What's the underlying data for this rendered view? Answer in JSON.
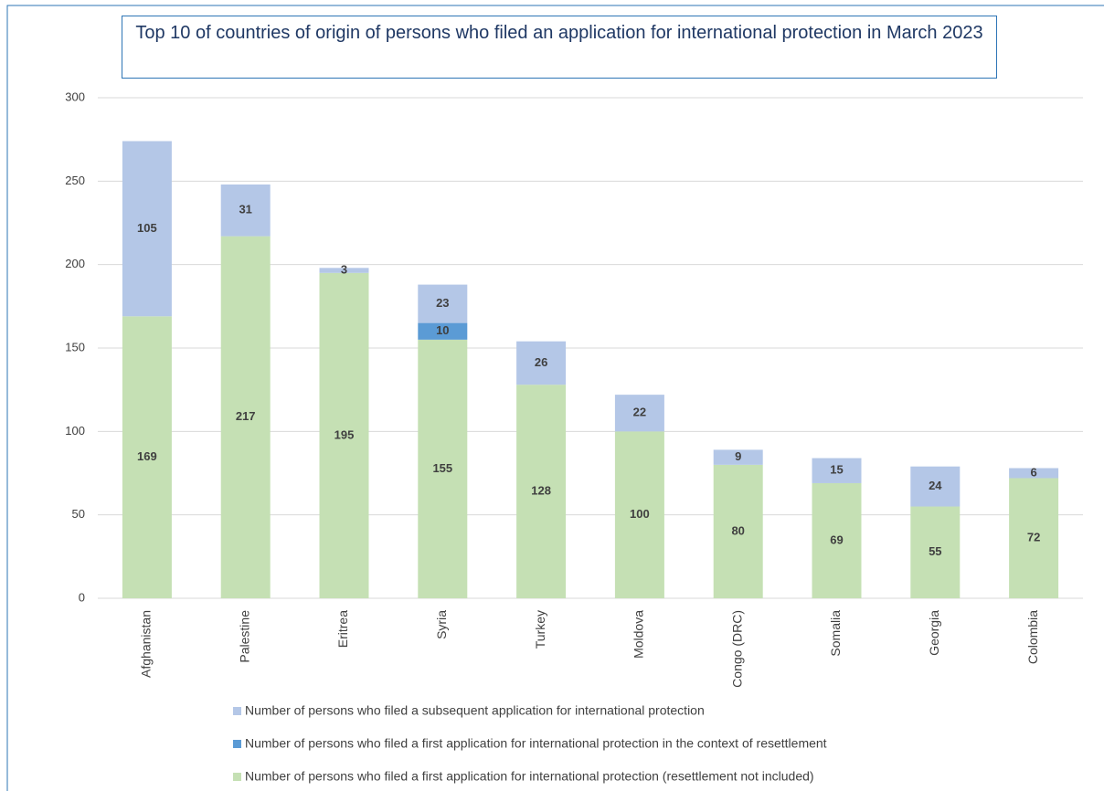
{
  "chart_data": {
    "type": "stacked_bar",
    "title": "Top 10 of countries of origin of persons who filed an application for international protection in March 2023",
    "categories": [
      "Afghanistan",
      "Palestine",
      "Eritrea",
      "Syria",
      "Turkey",
      "Moldova",
      "Congo (DRC)",
      "Somalia",
      "Georgia",
      "Colombia"
    ],
    "series": [
      {
        "name": "Number of persons who filed a first application for international protection (resettlement not included)",
        "color": "#c5e0b4",
        "values": [
          169,
          217,
          195,
          155,
          128,
          100,
          80,
          69,
          55,
          72
        ]
      },
      {
        "name": "Number of persons who filed a first application for international protection in the context of resettlement",
        "color": "#5b9bd5",
        "values": [
          null,
          null,
          null,
          10,
          null,
          null,
          null,
          null,
          null,
          null
        ]
      },
      {
        "name": "Number of persons who filed a subsequent application for international protection",
        "color": "#b4c7e7",
        "values": [
          105,
          31,
          3,
          23,
          26,
          22,
          9,
          15,
          24,
          6
        ]
      }
    ],
    "ylim": [
      0,
      300
    ],
    "yticks": [
      0,
      50,
      100,
      150,
      200,
      250,
      300
    ],
    "grid": true,
    "legend": "bottom"
  }
}
